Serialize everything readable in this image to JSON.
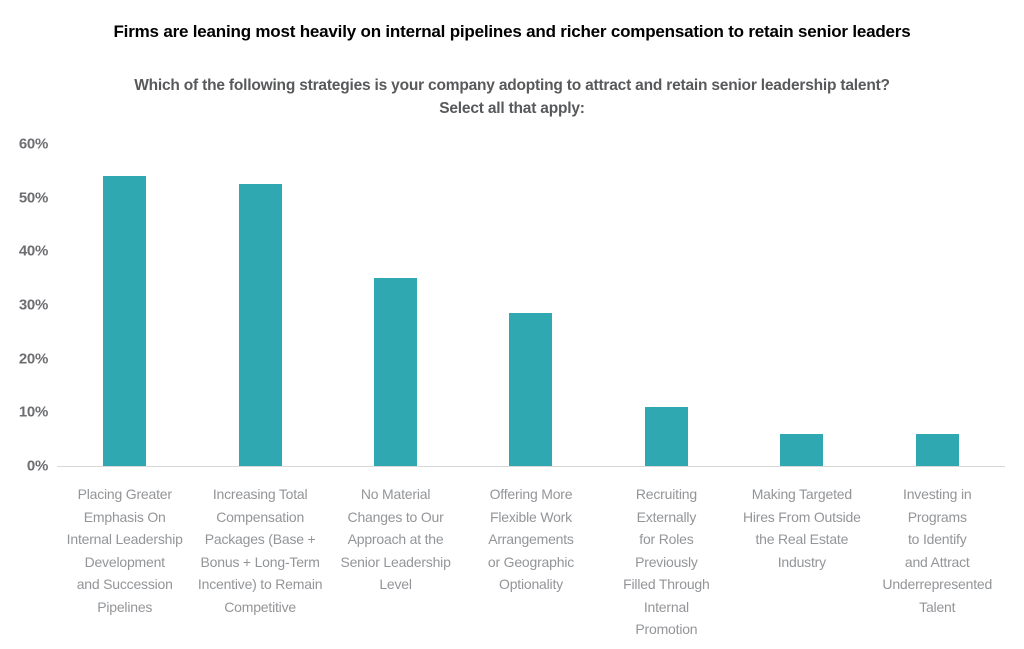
{
  "header": {
    "title": "Firms are leaning most heavily on internal pipelines and richer compensation to retain senior leaders",
    "question": "Which of the following strategies is your company adopting to attract and retain senior leadership talent?\nSelect all that apply:"
  },
  "colors": {
    "bar": "#2FA8B2",
    "axis_line": "#D8D8D8",
    "title_text": "#000000",
    "subtitle_text": "#58595B",
    "ytick_text": "#6D6E71",
    "category_text": "#939598"
  },
  "chart_data": {
    "type": "bar",
    "title": "Firms are leaning most heavily on internal pipelines and richer compensation to retain senior leaders",
    "subtitle": "Which of the following strategies is your company adopting to attract and retain senior leadership talent? Select all that apply:",
    "categories": [
      "Placing Greater Emphasis On Internal Leadership Development and Succession Pipelines",
      "Increasing Total Compensation Packages (Base + Bonus + Long-Term Incentive) to Remain Competitive",
      "No Material Changes to Our Approach at the Senior Leadership Level",
      "Offering More Flexible Work Arrangements or Geographic Optionality",
      "Recruiting Externally for Roles Previously Filled Through Internal Promotion",
      "Making Targeted Hires From Outside the Real Estate Industry",
      "Investing in Programs to Identify and Attract Underrepresented Talent"
    ],
    "category_display": [
      "Placing Greater\nEmphasis On\nInternal Leadership\nDevelopment\nand Succession\nPipelines",
      "Increasing Total\nCompensation\nPackages (Base +\nBonus + Long-Term\nIncentive) to Remain\nCompetitive",
      "No Material\nChanges to Our\nApproach at the\nSenior Leadership\nLevel",
      "Offering More\nFlexible Work\nArrangements\nor Geographic\nOptionality",
      "Recruiting\nExternally\nfor Roles\nPreviously\nFilled Through\nInternal\nPromotion",
      "Making Targeted\nHires From Outside\nthe Real Estate\nIndustry",
      "Investing in\nPrograms\nto Identify\nand Attract\nUnderrepresented\nTalent"
    ],
    "values": [
      54,
      52.5,
      35,
      28.5,
      11,
      6,
      6
    ],
    "xlabel": "",
    "ylabel": "",
    "ylim": [
      0,
      60
    ],
    "yticks": [
      0,
      10,
      20,
      30,
      40,
      50,
      60
    ],
    "ytick_suffix": "%",
    "grid": false,
    "legend_position": "none",
    "bar_color": "#2FA8B2"
  }
}
